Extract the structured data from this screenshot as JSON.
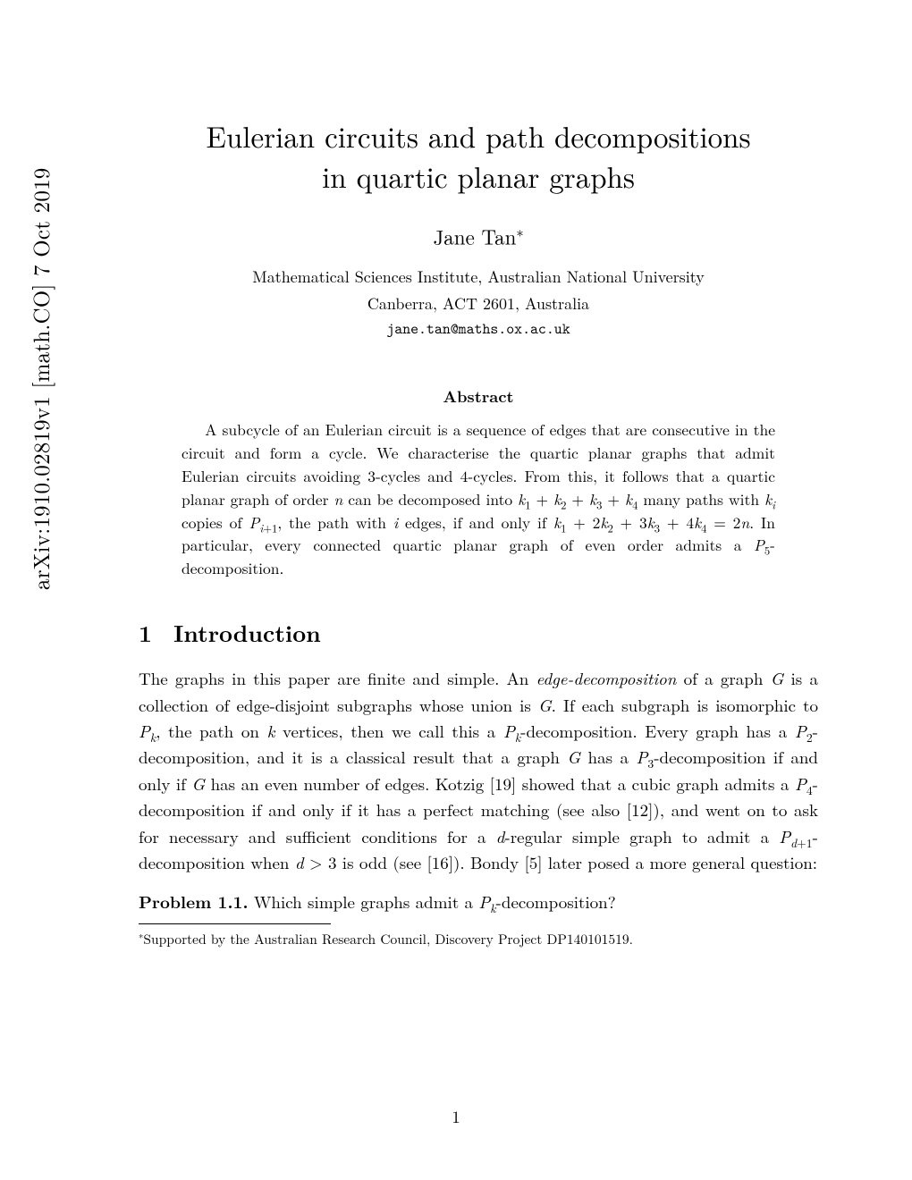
{
  "arxiv_stamp": "arXiv:1910.02819v1  [math.CO]  7 Oct 2019",
  "title_line1": "Eulerian circuits and path decompositions",
  "title_line2": "in quartic planar graphs",
  "author_name": "Jane Tan",
  "author_marker": "∗",
  "affiliation_line1": "Mathematical Sciences Institute, Australian National University",
  "affiliation_line2": "Canberra, ACT 2601, Australia",
  "email": "jane.tan@maths.ox.ac.uk",
  "abstract_heading": "Abstract",
  "abstract_body": "A subcycle of an Eulerian circuit is a sequence of edges that are consecutive in the circuit and form a cycle. We characterise the quartic planar graphs that admit Eulerian circuits avoiding 3-cycles and 4-cycles. From this, it follows that a quartic planar graph of order n can be decomposed into k₁ + k₂ + k₃ + k₄ many paths with kᵢ copies of Pᵢ₊₁, the path with i edges, if and only if k₁ + 2k₂ + 3k₃ + 4k₄ = 2n. In particular, every connected quartic planar graph of even order admits a P₅-decomposition.",
  "section_number": "1",
  "section_title": "Introduction",
  "body_para": "The graphs in this paper are finite and simple. An edge-decomposition of a graph G is a collection of edge-disjoint subgraphs whose union is G. If each subgraph is isomorphic to Pₖ, the path on k vertices, then we call this a Pₖ-decomposition. Every graph has a P₂-decomposition, and it is a classical result that a graph G has a P₃-decomposition if and only if G has an even number of edges. Kotzig [19] showed that a cubic graph admits a P₄-decomposition if and only if it has a perfect matching (see also [12]), and went on to ask for necessary and sufficient conditions for a d-regular simple graph to admit a Pd₊₁-decomposition when d > 3 is odd (see [16]). Bondy [5] later posed a more general question:",
  "problem_label": "Problem 1.1.",
  "problem_text": " Which simple graphs admit a Pₖ-decomposition?",
  "footnote_marker": "∗",
  "footnote_text": "Supported by the Australian Research Council, Discovery Project DP140101519.",
  "page_number": "1"
}
